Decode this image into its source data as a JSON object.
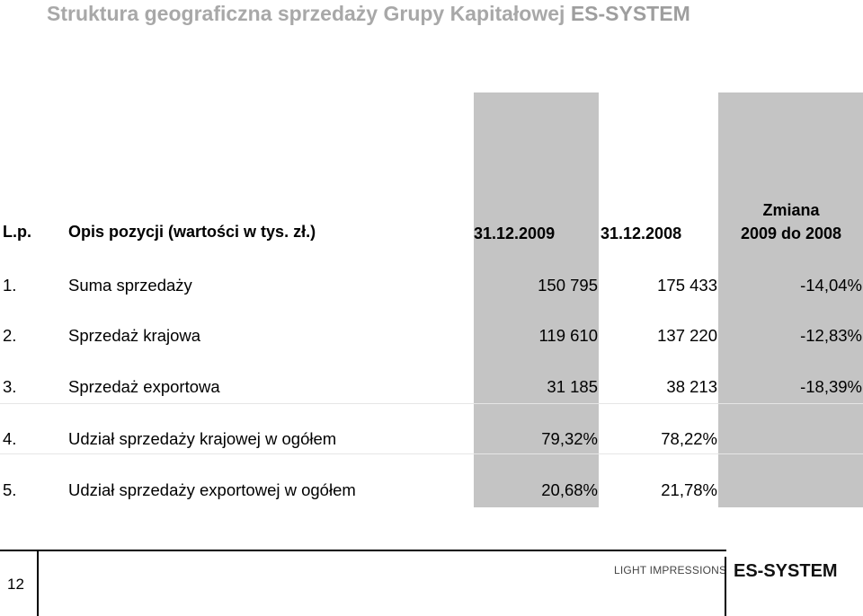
{
  "title": {
    "text": "Struktura geograficzna sprzedaży Grupy Kapitałowej ",
    "brand": "ES-SYSTEM"
  },
  "table": {
    "headers": {
      "lp": "L.p.",
      "opis": "Opis pozycji (wartości w tys. zł.)",
      "col2009": "31.12.2009",
      "col2008": "31.12.2008",
      "zmiana_line1": "Zmiana",
      "zmiana_line2": "2009 do 2008"
    },
    "rows": [
      {
        "lp": "1.",
        "opis": "Suma sprzedaży",
        "v2009": "150 795",
        "v2008": "175 433",
        "zmiana": "-14,04%"
      },
      {
        "lp": "2.",
        "opis": "Sprzedaż krajowa",
        "v2009": "119 610",
        "v2008": "137 220",
        "zmiana": "-12,83%"
      },
      {
        "lp": "3.",
        "opis": "Sprzedaż exportowa",
        "v2009": "31 185",
        "v2008": "38 213",
        "zmiana": "-18,39%"
      },
      {
        "lp": "4.",
        "opis": "Udział sprzedaży krajowej w ogółem",
        "v2009": "79,32%",
        "v2008": "78,22%",
        "zmiana": ""
      },
      {
        "lp": "5.",
        "opis": "Udział sprzedaży exportowej w ogółem",
        "v2009": "20,68%",
        "v2008": "21,78%",
        "zmiana": ""
      }
    ]
  },
  "footer": {
    "page_number": "12",
    "light_text": "LIGHT IMPRESSIONS",
    "logo_text": "ES-SYSTEM"
  }
}
